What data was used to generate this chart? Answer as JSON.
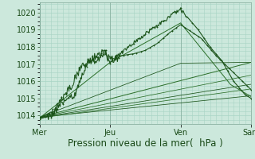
{
  "background_color": "#cce8dc",
  "grid_color": "#a8d4c4",
  "line_color_dark": "#1a5218",
  "line_color_mid": "#2a6e28",
  "xlabel": "Pression niveau de la mer(  hPa )",
  "xtick_labels": [
    "Mer",
    "Jeu",
    "Ven",
    "Sam"
  ],
  "xtick_positions": [
    0,
    48,
    96,
    144
  ],
  "ylim": [
    1013.5,
    1020.6
  ],
  "yticks": [
    1014,
    1015,
    1016,
    1017,
    1018,
    1019,
    1020
  ],
  "xlim": [
    0,
    144
  ],
  "xlabel_fontsize": 8.5,
  "xtick_fontsize": 7,
  "ytick_fontsize": 7
}
